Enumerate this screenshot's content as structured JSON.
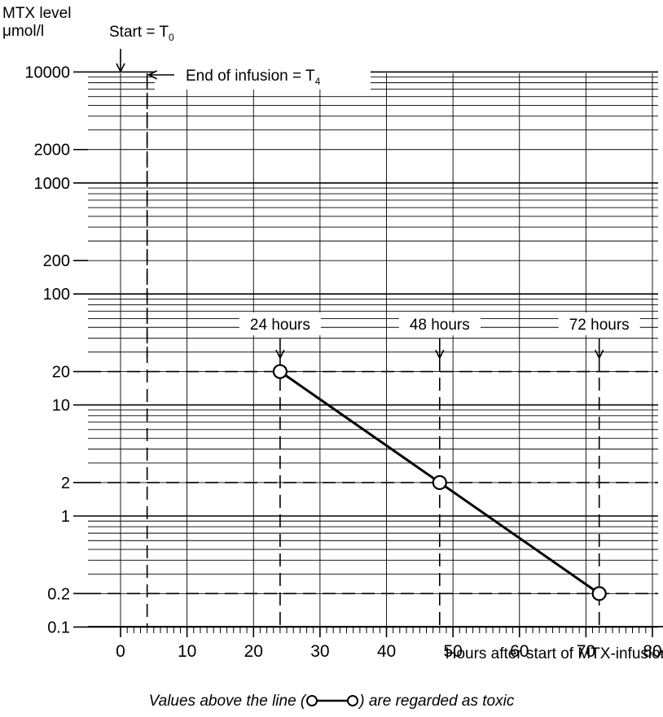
{
  "chart_data": {
    "type": "line",
    "y_scale": "log",
    "ylabel": [
      "MTX level",
      "μmol/l"
    ],
    "xlabel": "Hours after start of MTX-infusion",
    "footnote": {
      "before": "Values above the line (",
      "after": ") are regarded as toxic"
    },
    "xlim": [
      0,
      80
    ],
    "ylim": [
      0.1,
      10000
    ],
    "x_ticks": [
      0,
      10,
      20,
      30,
      40,
      50,
      60,
      70,
      80
    ],
    "y_ticks": [
      {
        "value": 10000,
        "label": "10000"
      },
      {
        "value": 2000,
        "label": "2000"
      },
      {
        "value": 1000,
        "label": "1000"
      },
      {
        "value": 200,
        "label": "200"
      },
      {
        "value": 100,
        "label": "100"
      },
      {
        "value": 20,
        "label": "20"
      },
      {
        "value": 10,
        "label": "10"
      },
      {
        "value": 2,
        "label": "2"
      },
      {
        "value": 1,
        "label": "1"
      },
      {
        "value": 0.2,
        "label": "0.2"
      },
      {
        "value": 0.1,
        "label": "0.1"
      }
    ],
    "grid": true,
    "series": [
      {
        "x": [
          24,
          48,
          72
        ],
        "y": [
          20,
          2,
          0.2
        ],
        "marker": "open-circle",
        "color": "#000000"
      }
    ],
    "reference_lines": {
      "vertical_dashed": [
        4,
        24,
        48,
        72
      ],
      "horizontal_dashed": [
        20,
        2,
        0.2
      ]
    },
    "annotations": [
      {
        "x": 24,
        "text": "24 hours"
      },
      {
        "x": 48,
        "text": "48 hours"
      },
      {
        "x": 72,
        "text": "72 hours"
      }
    ],
    "markers": {
      "start": {
        "x": 0,
        "label": "Start = T",
        "sub": "0"
      },
      "end": {
        "x": 4,
        "label": "End of infusion = T",
        "sub": "4"
      }
    }
  }
}
